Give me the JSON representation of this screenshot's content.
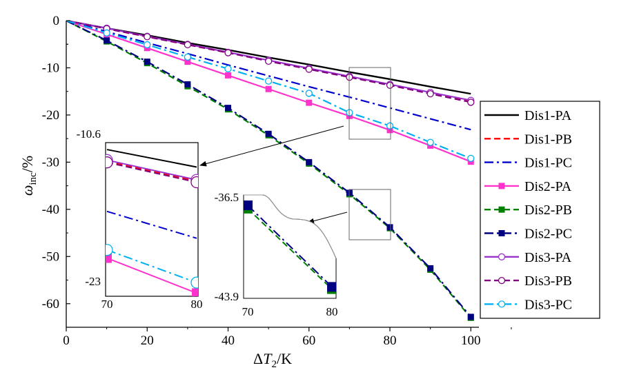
{
  "chart_data": {
    "type": "line",
    "x": [
      0,
      10,
      20,
      30,
      40,
      50,
      60,
      70,
      80,
      90,
      100
    ],
    "xlim": [
      0,
      102
    ],
    "ylim": [
      -65,
      0
    ],
    "xticks": [
      "0",
      "20",
      "40",
      "60",
      "80",
      "100"
    ],
    "yticks": [
      "0",
      "-10",
      "-20",
      "-30",
      "-40",
      "-50",
      "-60"
    ],
    "xlabel": {
      "prefix": "Δ",
      "var": "T",
      "sub": "2",
      "suffix": "/K"
    },
    "ylabel": {
      "var": "ω",
      "sub": "inc",
      "suffix": "/%"
    },
    "legend_position": "right",
    "series": [
      {
        "name": "Dis1-PA",
        "color": "#000000",
        "dash": "solid",
        "marker": "none",
        "values": [
          0,
          -1.6,
          -3.1,
          -4.7,
          -6.2,
          -7.8,
          -9.3,
          -10.9,
          -12.4,
          -14.0,
          -15.5
        ]
      },
      {
        "name": "Dis1-PB",
        "color": "#ff0000",
        "dash": "dash",
        "marker": "none",
        "values": [
          0,
          -1.7,
          -3.4,
          -5.1,
          -6.8,
          -8.5,
          -10.2,
          -11.9,
          -13.6,
          -15.3,
          -17.0
        ]
      },
      {
        "name": "Dis1-PC",
        "color": "#0000cc",
        "dash": "dashdot",
        "marker": "none",
        "values": [
          0,
          -2.3,
          -4.7,
          -7.0,
          -9.4,
          -11.7,
          -14.0,
          -16.2,
          -18.5,
          -20.8,
          -23.1
        ]
      },
      {
        "name": "Dis2-PA",
        "color": "#ff33cc",
        "dash": "solid",
        "marker": "square-filled",
        "values": [
          0,
          -2.9,
          -5.8,
          -8.7,
          -11.6,
          -14.5,
          -17.4,
          -20.2,
          -23.2,
          -26.5,
          -29.9
        ]
      },
      {
        "name": "Dis2-PB",
        "color": "#008000",
        "dash": "dash",
        "marker": "square-filled",
        "values": [
          0,
          -4.4,
          -9.0,
          -13.9,
          -18.8,
          -24.3,
          -30.3,
          -36.8,
          -44.0,
          -52.8,
          -63.0
        ]
      },
      {
        "name": "Dis2-PC",
        "color": "#000080",
        "dash": "dashdot",
        "marker": "square-filled",
        "values": [
          0,
          -4.2,
          -8.7,
          -13.5,
          -18.5,
          -24.0,
          -30.0,
          -36.5,
          -43.8,
          -52.5,
          -62.8
        ]
      },
      {
        "name": "Dis3-PA",
        "color": "#9933cc",
        "dash": "solid",
        "marker": "circle-open",
        "values": [
          0,
          -1.6,
          -3.3,
          -5.0,
          -6.7,
          -8.4,
          -10.1,
          -11.8,
          -13.5,
          -15.2,
          -16.9
        ]
      },
      {
        "name": "Dis3-PB",
        "color": "#800080",
        "dash": "dash",
        "marker": "circle-open",
        "values": [
          0,
          -1.7,
          -3.4,
          -5.1,
          -6.8,
          -8.6,
          -10.3,
          -12.0,
          -13.7,
          -15.5,
          -17.3
        ]
      },
      {
        "name": "Dis3-PC",
        "color": "#00b0f0",
        "dash": "dashdot",
        "marker": "circle-open",
        "values": [
          0,
          -2.6,
          -5.1,
          -7.7,
          -10.2,
          -12.8,
          -15.4,
          -19.5,
          -22.3,
          -25.8,
          -29.2
        ]
      }
    ],
    "insets": [
      {
        "name": "zoom-inset-1",
        "xlim": [
          70,
          80
        ],
        "ylim": [
          -23,
          -10.6
        ],
        "xticks": [
          "70",
          "80"
        ],
        "ylabels": [
          "-10.6",
          "-23"
        ],
        "series": [
          "Dis1-PA",
          "Dis1-PB",
          "Dis1-PC",
          "Dis2-PA",
          "Dis3-PA",
          "Dis3-PB",
          "Dis3-PC"
        ]
      },
      {
        "name": "zoom-inset-2",
        "xlim": [
          70,
          80
        ],
        "ylim": [
          -43.9,
          -36.5
        ],
        "xticks": [
          "70",
          "80"
        ],
        "ylabels": [
          "-36.5",
          "-43.9"
        ],
        "series": [
          "Dis2-PB",
          "Dis2-PC"
        ]
      }
    ]
  }
}
